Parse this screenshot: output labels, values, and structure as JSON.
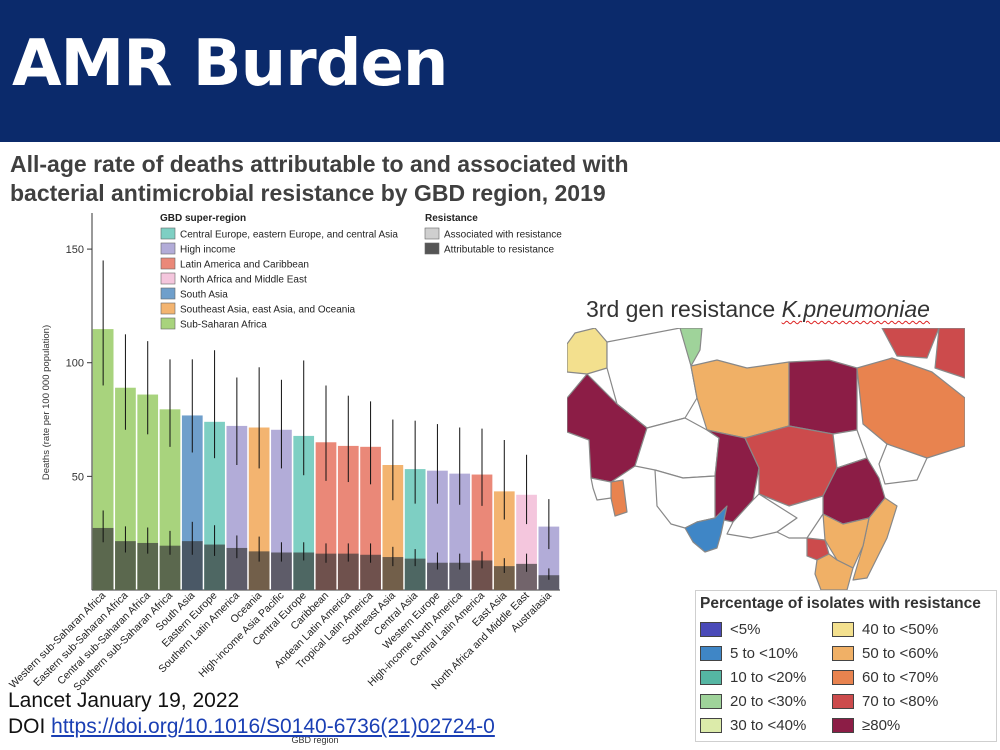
{
  "header": {
    "title": "AMR Burden"
  },
  "subtitle": {
    "line1": "All-age rate of deaths attributable to and associated with",
    "line2": "bacterial antimicrobial resistance by GBD region, 2019"
  },
  "map": {
    "title_prefix": "3rd gen resistance ",
    "title_organism": "K.pneumoniae",
    "legend_title": "Percentage of isolates with resistance",
    "legend_items": [
      {
        "label": "<5%",
        "color": "#4a4ab8"
      },
      {
        "label": "5 to <10%",
        "color": "#3f86c6"
      },
      {
        "label": "10 to <20%",
        "color": "#55b6a3"
      },
      {
        "label": "20 to <30%",
        "color": "#9fd39a"
      },
      {
        "label": "30 to <40%",
        "color": "#dcebaa"
      },
      {
        "label": "40 to <50%",
        "color": "#f3e08e"
      },
      {
        "label": "50 to <60%",
        "color": "#f0b066"
      },
      {
        "label": "60 to <70%",
        "color": "#e8834f"
      },
      {
        "label": "70 to <80%",
        "color": "#cc4b4c"
      },
      {
        "label": "≥80%",
        "color": "#8c1d46"
      }
    ]
  },
  "citation": {
    "line1": "Lancet January 19, 2022",
    "doi_prefix": "DOI ",
    "doi_link": "https://doi.org/10.1016/S0140-6736(21)02724-0"
  },
  "chart_data": {
    "type": "bar",
    "ylabel": "Deaths (rate per 100 000 population)",
    "xlabel": "GBD region",
    "ylim": [
      0,
      165
    ],
    "yticks": [
      50,
      100,
      150
    ],
    "legend_superregion_title": "GBD super-region",
    "legend_resistance_title": "Resistance",
    "super_regions": [
      {
        "name": "Central Europe, eastern Europe, and central Asia",
        "color": "#7ecfc3"
      },
      {
        "name": "High income",
        "color": "#b2acd8"
      },
      {
        "name": "Latin America and Caribbean",
        "color": "#ea8878"
      },
      {
        "name": "North Africa and Middle East",
        "color": "#f4c6dd"
      },
      {
        "name": "South Asia",
        "color": "#6f9fcb"
      },
      {
        "name": "Southeast Asia, east Asia, and Oceania",
        "color": "#f3b470"
      },
      {
        "name": "Sub-Saharan Africa",
        "color": "#a8d37d"
      }
    ],
    "resistance_legend": [
      {
        "name": "Associated with resistance",
        "color": "#cfcfcf"
      },
      {
        "name": "Attributable to resistance",
        "color": "#555555"
      }
    ],
    "categories": [
      "Western sub-Saharan Africa",
      "Eastern sub-Saharan Africa",
      "Central sub-Saharan Africa",
      "Southern sub-Saharan Africa",
      "South Asia",
      "Eastern Europe",
      "Southern Latin America",
      "Oceania",
      "High-income Asia Pacific",
      "Central Europe",
      "Caribbean",
      "Andean Latin America",
      "Tropical Latin America",
      "Southeast Asia",
      "Central Asia",
      "Western Europe",
      "High-income North America",
      "Central Latin America",
      "East Asia",
      "North Africa and Middle East",
      "Australasia"
    ],
    "region_index": [
      6,
      6,
      6,
      6,
      4,
      0,
      1,
      5,
      1,
      0,
      2,
      2,
      2,
      5,
      0,
      1,
      1,
      2,
      5,
      3,
      1
    ],
    "series": [
      {
        "name": "Associated with resistance",
        "values": [
          114.8,
          89.0,
          86.0,
          79.5,
          76.8,
          74.0,
          72.2,
          71.5,
          70.5,
          67.8,
          65.0,
          63.4,
          63.0,
          55.0,
          53.2,
          52.5,
          51.2,
          50.8,
          43.4,
          41.9,
          27.9
        ],
        "error_low": [
          90.0,
          70.5,
          68.5,
          63.0,
          60.5,
          58.0,
          55.0,
          53.5,
          53.5,
          50.5,
          48.0,
          47.5,
          46.5,
          39.5,
          38.0,
          38.0,
          37.5,
          37.0,
          31.0,
          29.0,
          18.0
        ],
        "error_high": [
          145.0,
          112.5,
          109.5,
          101.5,
          101.5,
          105.5,
          93.5,
          98.0,
          92.5,
          101.0,
          90.0,
          85.5,
          83.0,
          75.0,
          74.5,
          73.0,
          71.5,
          71.0,
          66.0,
          59.5,
          40.0
        ]
      },
      {
        "name": "Attributable to resistance",
        "values": [
          27.3,
          21.5,
          20.7,
          19.5,
          21.5,
          20.0,
          18.5,
          17.0,
          16.5,
          16.5,
          16.0,
          16.0,
          15.5,
          14.5,
          13.8,
          12.0,
          12.0,
          13.0,
          10.5,
          11.5,
          6.5
        ],
        "error_low": [
          21.0,
          16.5,
          16.0,
          15.5,
          15.5,
          15.0,
          14.0,
          12.5,
          12.5,
          13.0,
          12.0,
          12.5,
          12.0,
          10.5,
          10.5,
          9.0,
          9.0,
          9.5,
          7.5,
          8.0,
          4.5
        ],
        "error_high": [
          35.0,
          28.0,
          27.5,
          26.0,
          30.0,
          28.5,
          24.0,
          23.5,
          21.0,
          21.0,
          20.5,
          20.5,
          20.5,
          19.0,
          18.0,
          16.5,
          16.0,
          17.0,
          14.0,
          16.0,
          9.5
        ]
      }
    ]
  }
}
